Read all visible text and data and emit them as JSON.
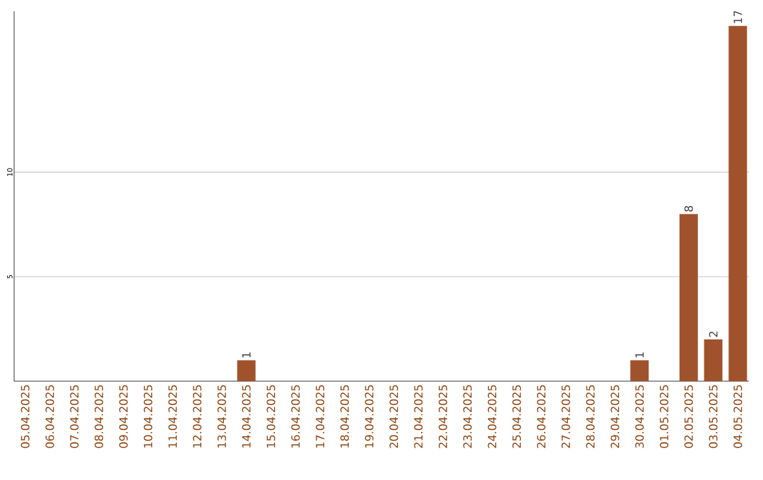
{
  "chart_data": {
    "type": "bar",
    "categories": [
      "05.04.2025",
      "06.04.2025",
      "07.04.2025",
      "08.04.2025",
      "09.04.2025",
      "10.04.2025",
      "11.04.2025",
      "12.04.2025",
      "13.04.2025",
      "14.04.2025",
      "15.04.2025",
      "16.04.2025",
      "17.04.2025",
      "18.04.2025",
      "19.04.2025",
      "20.04.2025",
      "21.04.2025",
      "22.04.2025",
      "23.04.2025",
      "24.04.2025",
      "25.04.2025",
      "26.04.2025",
      "27.04.2025",
      "28.04.2025",
      "29.04.2025",
      "30.04.2025",
      "01.05.2025",
      "02.05.2025",
      "03.05.2025",
      "04.05.2025"
    ],
    "values": [
      0,
      0,
      0,
      0,
      0,
      0,
      0,
      0,
      0,
      1,
      0,
      0,
      0,
      0,
      0,
      0,
      0,
      0,
      0,
      0,
      0,
      0,
      0,
      0,
      0,
      1,
      0,
      8,
      2,
      17
    ],
    "value_labels": [
      null,
      null,
      null,
      null,
      null,
      null,
      null,
      null,
      null,
      "1",
      null,
      null,
      null,
      null,
      null,
      null,
      null,
      null,
      null,
      null,
      null,
      null,
      null,
      null,
      null,
      "1",
      null,
      "8",
      "2",
      "17"
    ],
    "color": "#a0522d",
    "ylim": [
      0,
      17.7
    ],
    "yticks": [
      5,
      10
    ],
    "grid": "y"
  }
}
